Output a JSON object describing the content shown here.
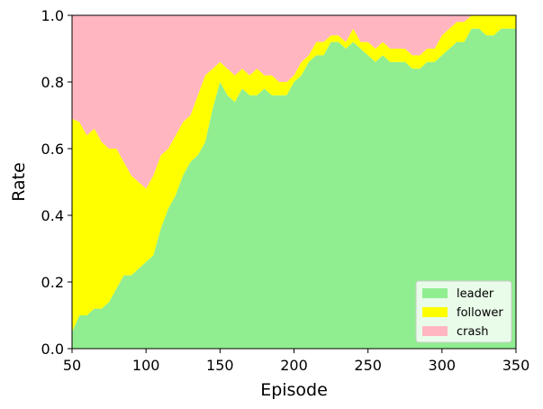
{
  "chart_data": {
    "type": "area",
    "stacked": true,
    "xlabel": "Episode",
    "ylabel": "Rate",
    "xlim": [
      50,
      350
    ],
    "ylim": [
      0.0,
      1.0
    ],
    "x_ticks": [
      50,
      100,
      150,
      200,
      250,
      300,
      350
    ],
    "x_tick_labels": [
      "50",
      "100",
      "150",
      "200",
      "250",
      "300",
      "350"
    ],
    "y_ticks": [
      0.0,
      0.2,
      0.4,
      0.6,
      0.8,
      1.0
    ],
    "y_tick_labels": [
      "0.0",
      "0.2",
      "0.4",
      "0.6",
      "0.8",
      "1.0"
    ],
    "grid": false,
    "legend_position": "bottom-right",
    "x": [
      50,
      55,
      60,
      65,
      70,
      75,
      80,
      85,
      90,
      95,
      100,
      105,
      110,
      115,
      120,
      125,
      130,
      135,
      140,
      145,
      150,
      155,
      160,
      165,
      170,
      175,
      180,
      185,
      190,
      195,
      200,
      205,
      210,
      215,
      220,
      225,
      230,
      235,
      240,
      245,
      250,
      255,
      260,
      265,
      270,
      275,
      280,
      285,
      290,
      295,
      300,
      305,
      310,
      315,
      320,
      325,
      330,
      335,
      340,
      345,
      350
    ],
    "series": [
      {
        "name": "leader",
        "color": "#90EE90",
        "values": [
          0.05,
          0.1,
          0.1,
          0.12,
          0.12,
          0.14,
          0.18,
          0.22,
          0.22,
          0.24,
          0.26,
          0.28,
          0.36,
          0.42,
          0.46,
          0.52,
          0.56,
          0.58,
          0.62,
          0.72,
          0.8,
          0.76,
          0.74,
          0.78,
          0.76,
          0.76,
          0.78,
          0.76,
          0.76,
          0.76,
          0.8,
          0.82,
          0.86,
          0.88,
          0.88,
          0.92,
          0.92,
          0.9,
          0.92,
          0.9,
          0.88,
          0.86,
          0.88,
          0.86,
          0.86,
          0.86,
          0.84,
          0.84,
          0.86,
          0.86,
          0.88,
          0.9,
          0.92,
          0.92,
          0.96,
          0.96,
          0.94,
          0.94,
          0.96,
          0.96,
          0.96
        ]
      },
      {
        "name": "follower",
        "color": "#FFFF00",
        "values": [
          0.64,
          0.58,
          0.54,
          0.54,
          0.5,
          0.46,
          0.42,
          0.34,
          0.3,
          0.26,
          0.22,
          0.24,
          0.22,
          0.18,
          0.18,
          0.16,
          0.14,
          0.18,
          0.2,
          0.12,
          0.06,
          0.08,
          0.08,
          0.06,
          0.06,
          0.08,
          0.04,
          0.06,
          0.04,
          0.04,
          0.02,
          0.04,
          0.02,
          0.04,
          0.04,
          0.02,
          0.02,
          0.02,
          0.04,
          0.02,
          0.04,
          0.04,
          0.04,
          0.04,
          0.04,
          0.04,
          0.04,
          0.04,
          0.04,
          0.04,
          0.06,
          0.06,
          0.06,
          0.06,
          0.04,
          0.04,
          0.06,
          0.06,
          0.04,
          0.04,
          0.04
        ]
      },
      {
        "name": "crash",
        "color": "#FFB6C1",
        "values": [
          0.31,
          0.32,
          0.36,
          0.34,
          0.38,
          0.4,
          0.4,
          0.44,
          0.48,
          0.5,
          0.52,
          0.48,
          0.42,
          0.4,
          0.36,
          0.32,
          0.3,
          0.24,
          0.18,
          0.16,
          0.14,
          0.16,
          0.18,
          0.16,
          0.18,
          0.16,
          0.18,
          0.18,
          0.2,
          0.2,
          0.18,
          0.14,
          0.12,
          0.08,
          0.08,
          0.06,
          0.06,
          0.08,
          0.04,
          0.08,
          0.08,
          0.1,
          0.08,
          0.1,
          0.1,
          0.1,
          0.12,
          0.12,
          0.1,
          0.1,
          0.06,
          0.04,
          0.02,
          0.02,
          0.0,
          0.0,
          0.0,
          0.0,
          0.0,
          0.0,
          0.0
        ]
      }
    ]
  }
}
